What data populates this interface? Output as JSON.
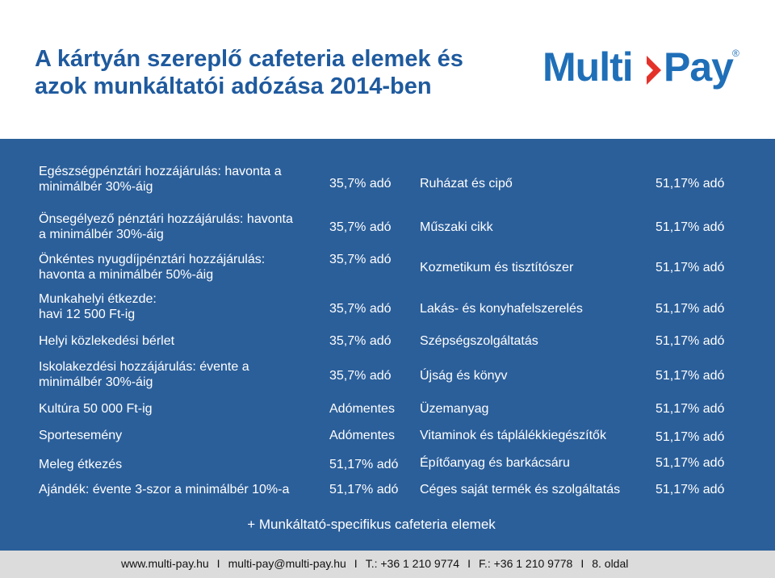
{
  "title_line1": "A kártyán szereplő cafeteria elemek és",
  "title_line2": "azok munkáltatói adózása 2014-ben",
  "logo": {
    "part1": "Multi",
    "part2": "Pay",
    "reg": "®",
    "brand_color": "#1f6fb8"
  },
  "colors": {
    "title": "#1f5a9e",
    "panel": "#2b5f9a",
    "footer_bar": "#dcdcdc"
  },
  "rows": [
    {
      "l1": "Egészségpénztári hozzájárulás: havonta a",
      "l2": "minimálbér 30%-áig",
      "tax1": "35,7% adó",
      "item": "Ruházat és cipő",
      "tax2": "51,17% adó"
    },
    {
      "l1": "Önsegélyező pénztári hozzájárulás: havonta",
      "l2": "a minimálbér 30%-áig",
      "tax1": "35,7% adó",
      "item": "Műszaki cikk",
      "tax2": "51,17% adó"
    },
    {
      "l1": "Önkéntes nyugdíjpénztári hozzájárulás:",
      "l2": "havonta a minimálbér 50%-áig",
      "tax1": "35,7% adó",
      "item": "Kozmetikum és tisztítószer",
      "tax2": "51,17% adó"
    },
    {
      "l1": "Munkahelyi étkezde:",
      "l2": "havi 12 500 Ft-ig",
      "tax1": "35,7% adó",
      "item": "Lakás- és konyhafelszerelés",
      "tax2": "51,17% adó"
    },
    {
      "l1": "Helyi közlekedési bérlet",
      "l2": "",
      "tax1": "35,7% adó",
      "item": "Szépségszolgáltatás",
      "tax2": "51,17% adó"
    },
    {
      "l1": "Iskolakezdési hozzájárulás: évente a",
      "l2": "minimálbér 30%-áig",
      "tax1": "35,7% adó",
      "item": "Újság és könyv",
      "tax2": "51,17% adó"
    },
    {
      "l1": "Kultúra 50 000 Ft-ig",
      "l2": "",
      "tax1": "Adómentes",
      "item": "Üzemanyag",
      "tax2": "51,17% adó"
    },
    {
      "l1": "Sportesemény",
      "l2": "",
      "tax1": "Adómentes",
      "item": "Vitaminok és táplálékkiegészítők",
      "tax2": "51,17% adó"
    },
    {
      "l1": "Meleg étkezés",
      "l2": "",
      "tax1": "51,17% adó",
      "item": "Építőanyag és barkácsáru",
      "tax2": "51,17% adó"
    },
    {
      "l1": "Ajándék: évente 3-szor a minimálbér 10%-a",
      "l2": "",
      "tax1": "51,17% adó",
      "item": "Céges saját termék és szolgáltatás",
      "tax2": "51,17% adó"
    }
  ],
  "note": "+ Munkáltató-specifikus cafeteria elemek",
  "footer": {
    "web": "www.multi-pay.hu",
    "email": "multi-pay@multi-pay.hu",
    "phone": "T.: +36 1 210 9774",
    "fax": "F.: +36 1 210 9778",
    "page": "8. oldal",
    "separator": "I"
  }
}
